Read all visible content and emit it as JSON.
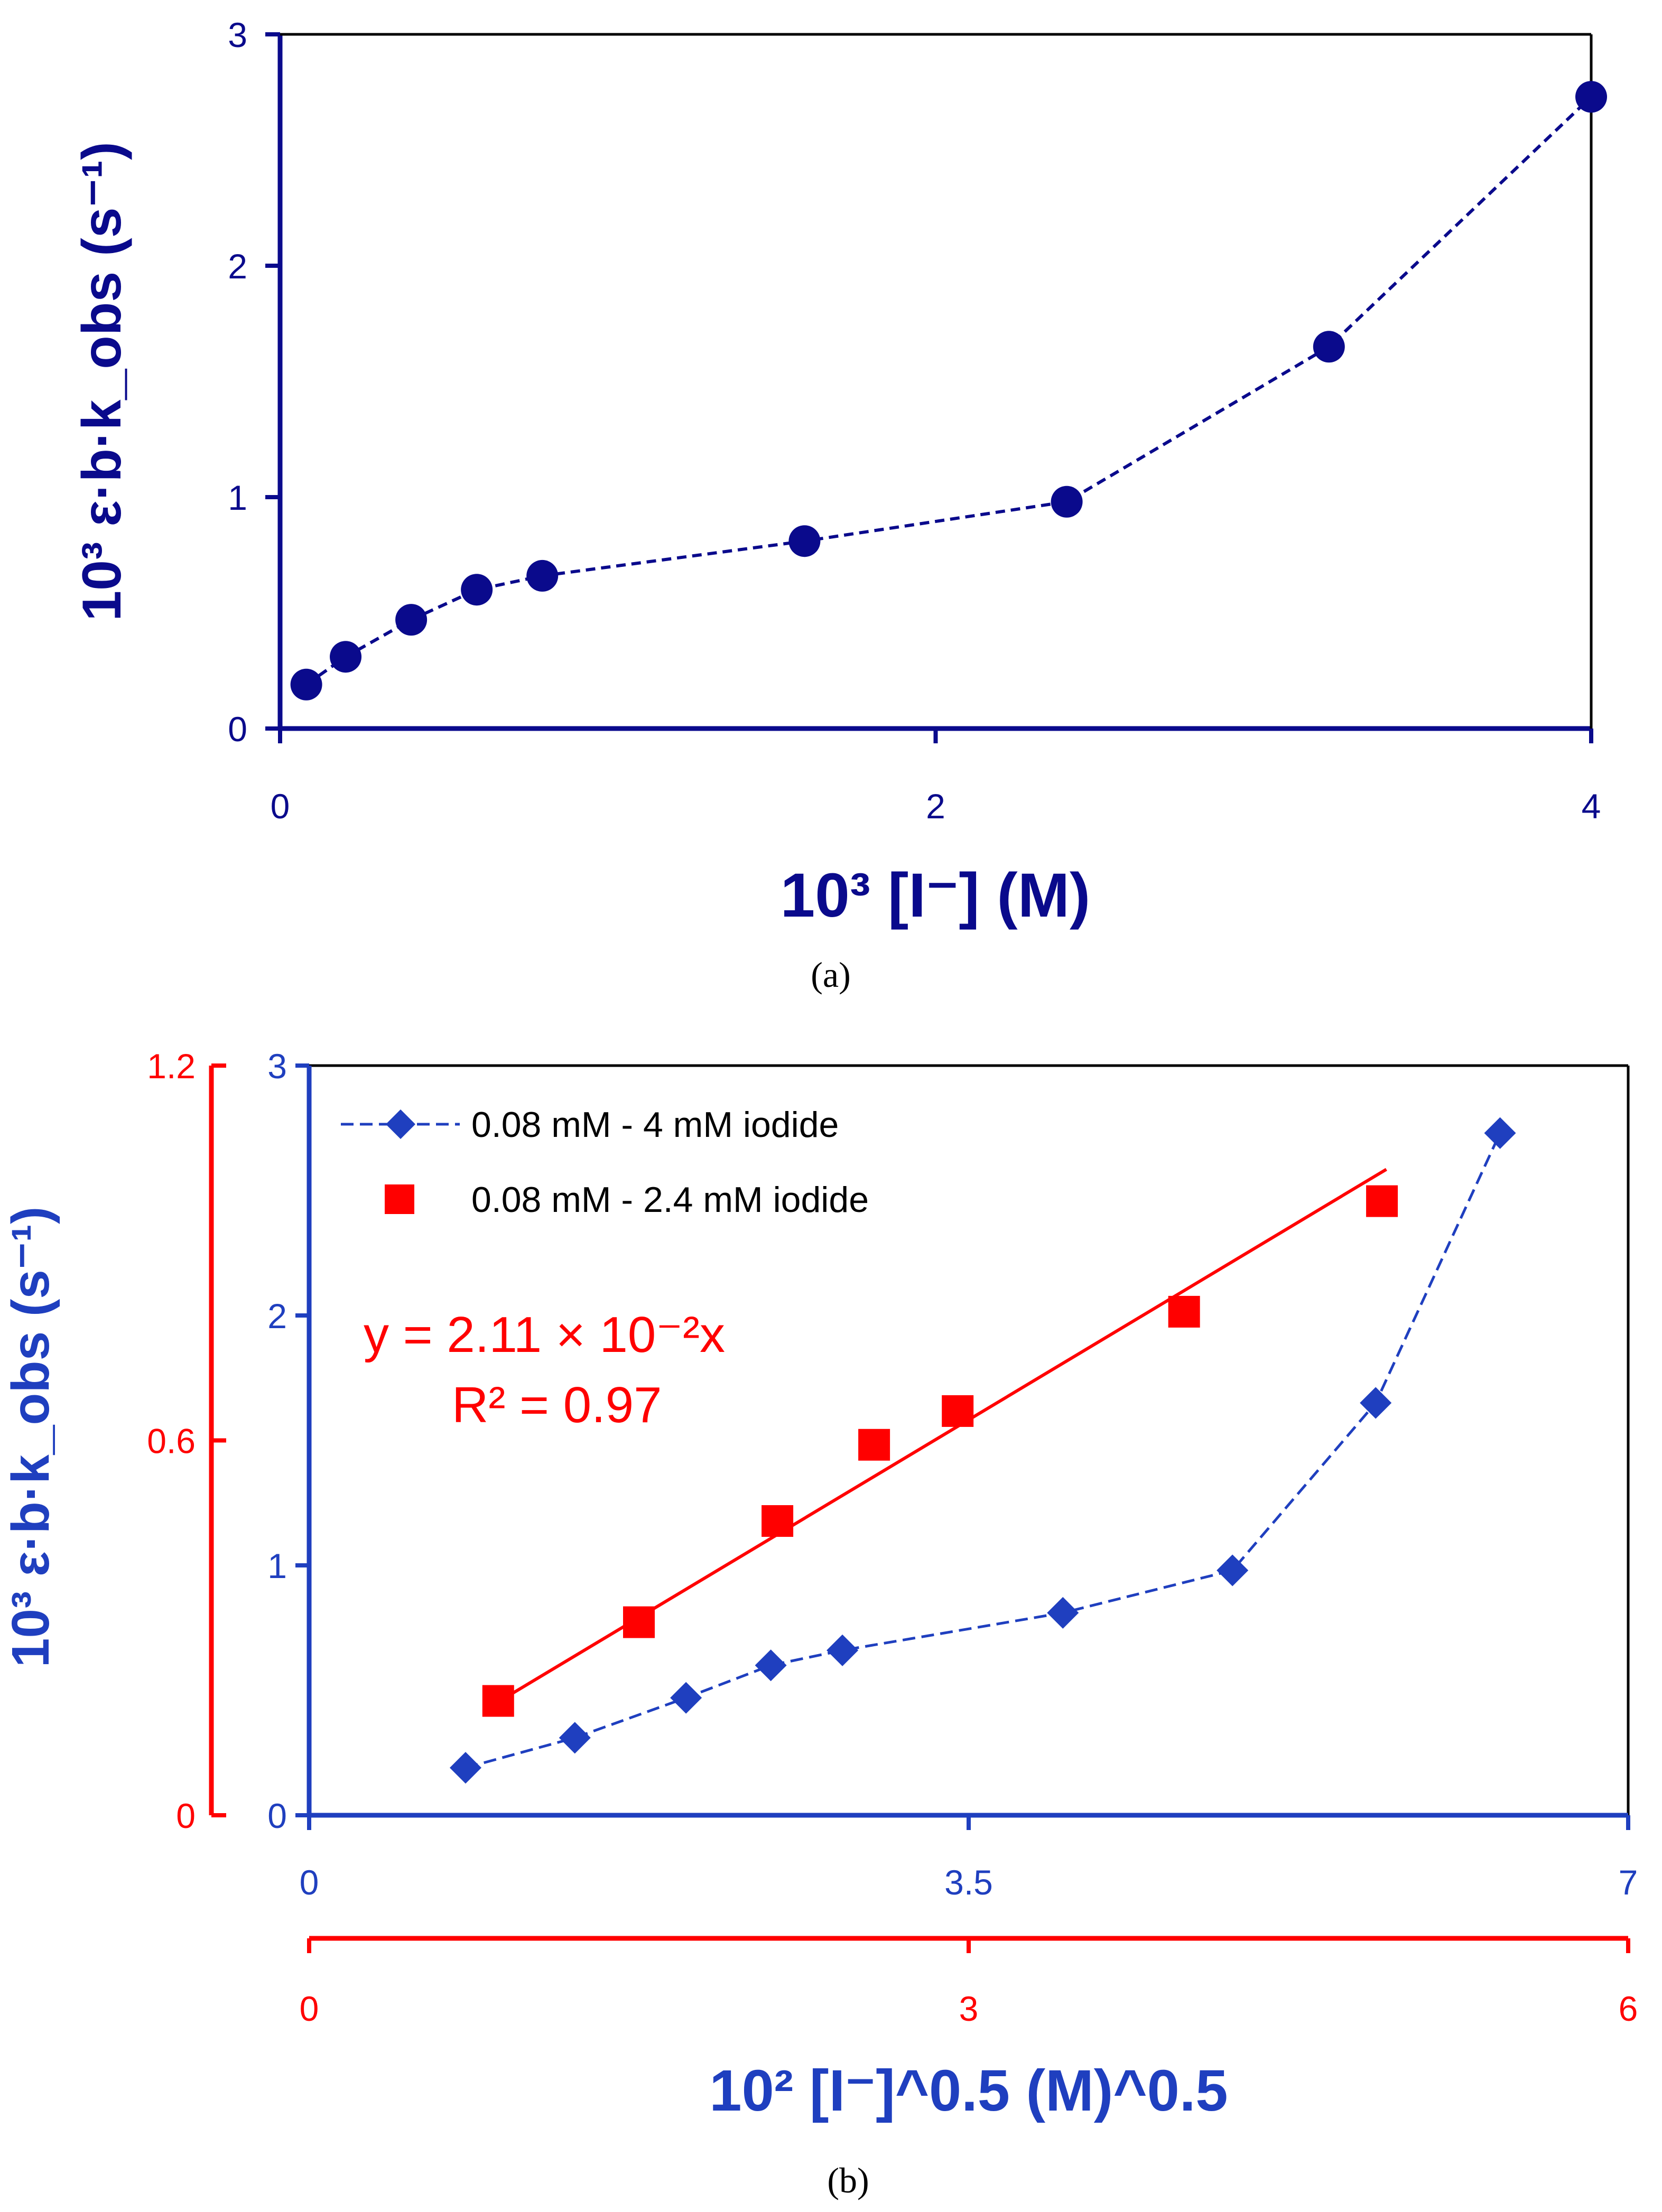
{
  "colors": {
    "navy": "#0a0a8c",
    "blue": "#1f3fbf",
    "red": "#ff0000",
    "black": "#000000"
  },
  "chart_data": [
    {
      "panel": "a",
      "type": "scatter",
      "caption": "(a)",
      "xlabel": "10³ [I⁻] (M)",
      "ylabel": "10³ ε·b·k_obs (s⁻¹)",
      "xlim": [
        0,
        4
      ],
      "ylim": [
        0,
        3
      ],
      "xticks": [
        0,
        2,
        4
      ],
      "yticks": [
        0,
        1,
        2,
        3
      ],
      "grid": false,
      "series": [
        {
          "name": "data",
          "marker": "circle",
          "line": "dashed",
          "x": [
            0.08,
            0.2,
            0.4,
            0.6,
            0.8,
            1.6,
            2.4,
            3.2,
            4.0
          ],
          "y": [
            0.19,
            0.31,
            0.47,
            0.6,
            0.66,
            0.81,
            0.98,
            1.65,
            2.73
          ]
        }
      ]
    },
    {
      "panel": "b",
      "type": "scatter",
      "caption": "(b)",
      "xlabel": "10² [I⁻]^0.5 (M)^0.5",
      "ylabel": "10³ ε·b·k_obs (s⁻¹)",
      "x_primary_lim": [
        0,
        7
      ],
      "x_primary_ticks": [
        "0",
        "3.5",
        "7"
      ],
      "x_secondary_lim": [
        0,
        6
      ],
      "x_secondary_ticks": [
        "0",
        "3",
        "6"
      ],
      "y_primary_lim": [
        0,
        3
      ],
      "y_primary_ticks": [
        "0",
        "1",
        "2",
        "3"
      ],
      "y_secondary_lim": [
        0,
        1.2
      ],
      "y_secondary_ticks": [
        "0",
        "0.6",
        "1.2"
      ],
      "legend_position": "top-left",
      "annotation": {
        "line1": "y = 2.11 × 10⁻²x",
        "line2": "R² = 0.97"
      },
      "fit_line": {
        "slope": 0.0211,
        "x_range": [
          0.8,
          4.9
        ]
      },
      "series": [
        {
          "name": "0.08 mM - 4 mM iodide",
          "marker": "diamond",
          "line": "dashed",
          "axes": "primary",
          "x": [
            0.83,
            1.41,
            2.0,
            2.45,
            2.83,
            4.0,
            4.9,
            5.66,
            6.32
          ],
          "y": [
            0.19,
            0.31,
            0.47,
            0.6,
            0.66,
            0.81,
            0.98,
            1.65,
            2.73
          ]
        },
        {
          "name": "0.08 mM - 2.4 mM iodide",
          "marker": "square",
          "line": "none",
          "axes": "secondary",
          "x": [
            0.86,
            1.5,
            2.13,
            2.57,
            2.95,
            3.98,
            4.88
          ],
          "y": [
            0.183,
            0.309,
            0.471,
            0.593,
            0.647,
            0.806,
            0.983
          ]
        }
      ]
    }
  ]
}
